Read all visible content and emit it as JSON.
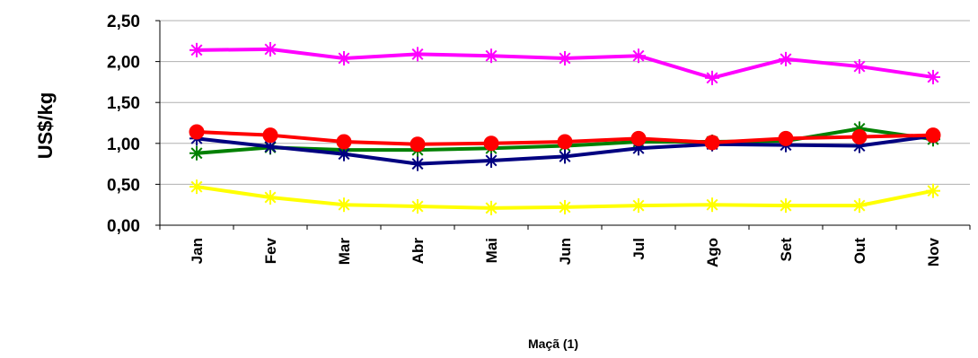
{
  "chart_data": {
    "type": "line",
    "title": "",
    "xlabel": "Maçã (1)",
    "ylabel": "US$/kg",
    "categories": [
      "Jan",
      "Fev",
      "Mar",
      "Abr",
      "Mai",
      "Jun",
      "Jul",
      "Ago",
      "Set",
      "Out",
      "Nov"
    ],
    "ylim": [
      0,
      2.5
    ],
    "yticks": [
      "0,00",
      "0,50",
      "1,00",
      "1,50",
      "2,00",
      "2,50"
    ],
    "grid": "horizontal",
    "legend": "none",
    "series": [
      {
        "color": "#FF00FF",
        "marker": "asterisk",
        "values": [
          2.14,
          2.15,
          2.04,
          2.09,
          2.07,
          2.04,
          2.07,
          1.8,
          2.03,
          1.94,
          1.81
        ]
      },
      {
        "color": "#008000",
        "marker": "asterisk",
        "values": [
          0.88,
          0.95,
          0.92,
          0.92,
          0.94,
          0.97,
          1.02,
          1.02,
          1.03,
          1.18,
          1.05
        ]
      },
      {
        "color": "#000080",
        "marker": "asterisk",
        "values": [
          1.06,
          0.96,
          0.87,
          0.75,
          0.79,
          0.84,
          0.94,
          0.99,
          0.98,
          0.97,
          1.09
        ]
      },
      {
        "color": "#FF0000",
        "marker": "circle",
        "values": [
          1.14,
          1.1,
          1.02,
          0.99,
          1.0,
          1.02,
          1.06,
          1.01,
          1.06,
          1.08,
          1.1
        ]
      },
      {
        "color": "#FFFF00",
        "marker": "asterisk",
        "values": [
          0.47,
          0.34,
          0.25,
          0.23,
          0.21,
          0.22,
          0.24,
          0.25,
          0.24,
          0.24,
          0.42
        ]
      }
    ]
  }
}
